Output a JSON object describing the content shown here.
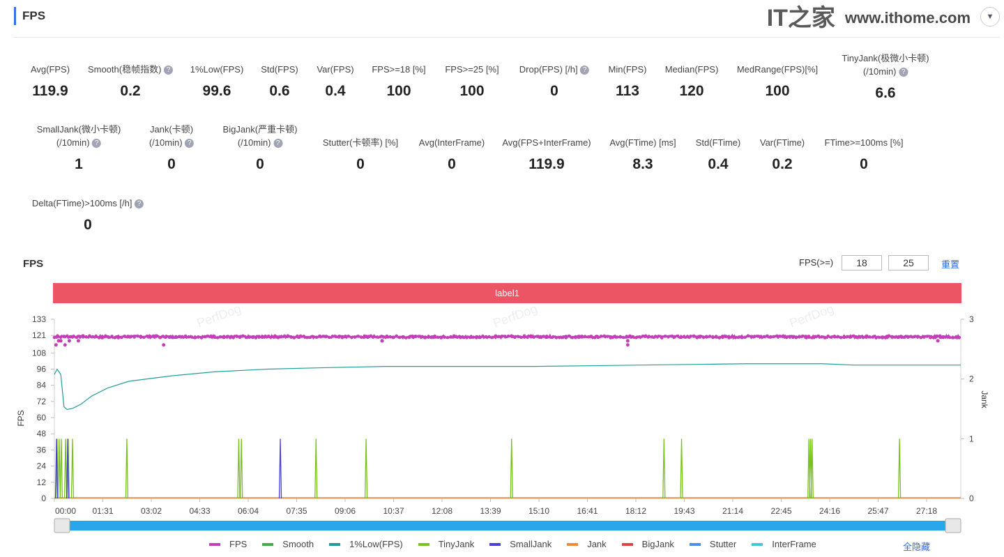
{
  "header": {
    "title": "FPS",
    "dropdown_icon": "triangle-down"
  },
  "stats_row1": [
    {
      "label": "Avg(FPS)",
      "value": "119.9",
      "help": false
    },
    {
      "label": "Smooth(稳帧指数)",
      "value": "0.2",
      "help": true
    },
    {
      "label": "1%Low(FPS)",
      "value": "99.6",
      "help": false
    },
    {
      "label": "Std(FPS)",
      "value": "0.6",
      "help": false
    },
    {
      "label": "Var(FPS)",
      "value": "0.4",
      "help": false
    },
    {
      "label": "FPS>=18 [%]",
      "value": "100",
      "help": false
    },
    {
      "label": "FPS>=25 [%]",
      "value": "100",
      "help": false
    },
    {
      "label": "Drop(FPS) [/h]",
      "value": "0",
      "help": true
    },
    {
      "label": "Min(FPS)",
      "value": "113",
      "help": false
    },
    {
      "label": "Median(FPS)",
      "value": "120",
      "help": false
    },
    {
      "label": "MedRange(FPS)[%]",
      "value": "100",
      "help": false
    },
    {
      "label": "TinyJank(极微小卡顿)",
      "label2": "(/10min)",
      "value": "6.6",
      "help": true
    }
  ],
  "stats_row2": [
    {
      "label": "SmallJank(微小卡顿)",
      "label2": "(/10min)",
      "value": "1",
      "help": true
    },
    {
      "label": "Jank(卡顿)",
      "label2": "(/10min)",
      "value": "0",
      "help": true
    },
    {
      "label": "BigJank(严重卡顿)",
      "label2": "(/10min)",
      "value": "0",
      "help": true
    },
    {
      "label": "Stutter(卡顿率) [%]",
      "value": "0",
      "help": false
    },
    {
      "label": "Avg(InterFrame)",
      "value": "0",
      "help": false
    },
    {
      "label": "Avg(FPS+InterFrame)",
      "value": "119.9",
      "help": false
    },
    {
      "label": "Avg(FTime) [ms]",
      "value": "8.3",
      "help": false
    },
    {
      "label": "Std(FTime)",
      "value": "0.4",
      "help": false
    },
    {
      "label": "Var(FTime)",
      "value": "0.2",
      "help": false
    },
    {
      "label": "FTime>=100ms [%]",
      "value": "0",
      "help": false
    }
  ],
  "stats_row3": [
    {
      "label": "Delta(FTime)>100ms [/h]",
      "value": "0",
      "help": true
    }
  ],
  "chart_panel": {
    "title": "FPS",
    "fps_ge_label": "FPS(>=)",
    "threshold1": "18",
    "threshold2": "25",
    "reset_label": "重置",
    "band_label": "label1",
    "hide_all_label": "全隐藏"
  },
  "watermark": {
    "logo": "IT之家",
    "url": "www.ithome.com",
    "perfdog": "PerfDog"
  },
  "chart_data": {
    "type": "line",
    "ylabel": "FPS",
    "y2label": "Jank",
    "ylim": [
      0,
      133
    ],
    "y2lim": [
      0,
      3
    ],
    "yticks": [
      "0",
      "12",
      "24",
      "36",
      "48",
      "60",
      "72",
      "84",
      "96",
      "108",
      "121",
      "133"
    ],
    "y2ticks": [
      "0",
      "1",
      "2",
      "3"
    ],
    "xticks": [
      "00:00",
      "01:31",
      "03:02",
      "04:33",
      "06:04",
      "07:35",
      "09:06",
      "10:37",
      "12:08",
      "13:39",
      "15:10",
      "16:41",
      "18:12",
      "19:43",
      "21:14",
      "22:45",
      "24:16",
      "25:47",
      "27:18"
    ],
    "x_range_seconds": [
      0,
      1701
    ],
    "series": [
      {
        "name": "FPS",
        "color": "#c23fb8",
        "typical": 120,
        "dips_seconds": [
          3,
          8,
          12,
          20,
          28,
          45,
          205,
          615,
          615,
          1076,
          1076,
          1658
        ]
      },
      {
        "name": "Smooth",
        "color": "#3dae4c"
      },
      {
        "name": "1%Low(FPS)",
        "color": "#1f9e98",
        "points": [
          [
            0,
            92
          ],
          [
            5,
            96
          ],
          [
            12,
            90
          ],
          [
            18,
            70
          ],
          [
            24,
            64
          ],
          [
            35,
            69
          ],
          [
            50,
            68
          ],
          [
            70,
            76
          ],
          [
            100,
            82
          ],
          [
            140,
            87
          ],
          [
            180,
            89
          ],
          [
            220,
            91
          ],
          [
            300,
            94
          ],
          [
            400,
            96
          ],
          [
            500,
            97
          ],
          [
            620,
            98
          ],
          [
            740,
            98
          ],
          [
            900,
            98
          ],
          [
            1100,
            99
          ],
          [
            1300,
            100
          ],
          [
            1440,
            100
          ],
          [
            1500,
            99
          ],
          [
            1701,
            99
          ]
        ]
      },
      {
        "name": "TinyJank",
        "color": "#79c21b",
        "events_seconds": [
          5,
          9,
          13,
          21,
          26,
          34,
          136,
          346,
          351,
          491,
          585,
          858,
          1144,
          1177,
          1416,
          1419,
          1422,
          1586
        ],
        "value": 1
      },
      {
        "name": "SmallJank",
        "color": "#4a3fd8",
        "events_seconds": [
          4,
          25,
          424
        ],
        "value": 1
      },
      {
        "name": "Jank",
        "color": "#f08a3c"
      },
      {
        "name": "BigJank",
        "color": "#e04343"
      },
      {
        "name": "Stutter",
        "color": "#4a8fe8"
      },
      {
        "name": "InterFrame",
        "color": "#3fc8d8"
      }
    ]
  }
}
